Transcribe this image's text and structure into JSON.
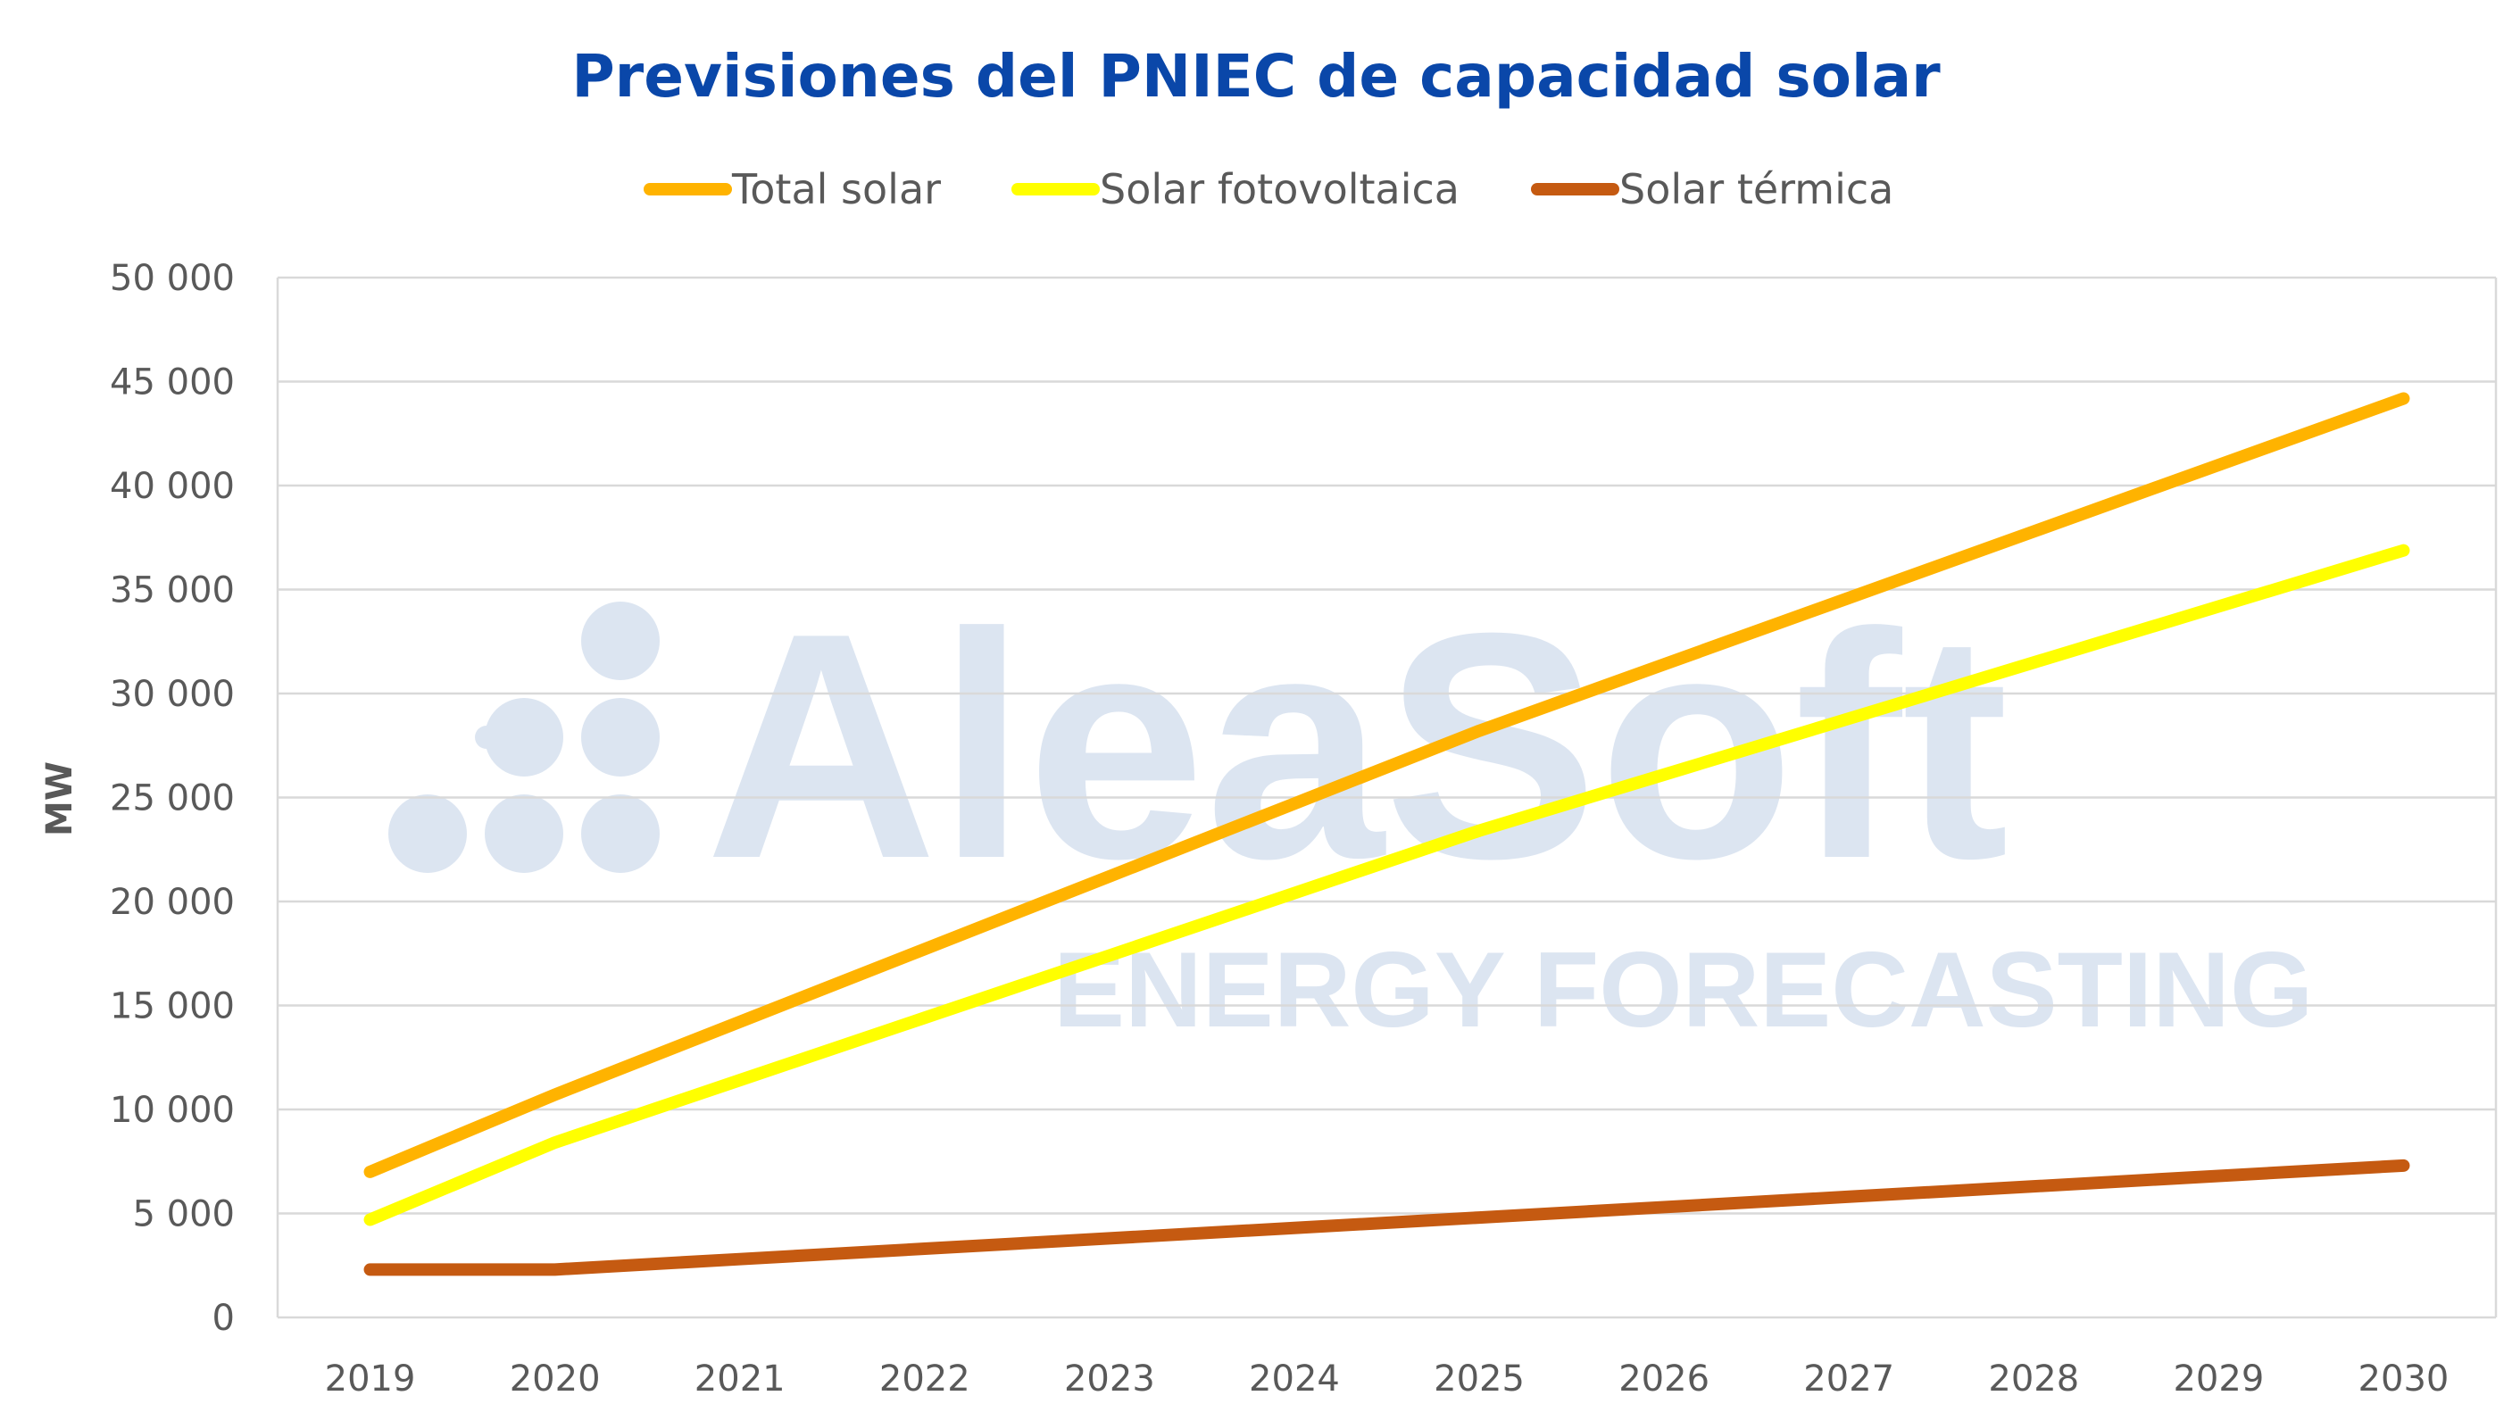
{
  "watermark": {
    "brand": "AleaSoft",
    "tagline": "ENERGY FORECASTING",
    "color": "#dce5f1"
  },
  "chart_data": {
    "type": "line",
    "title": "Previsiones del PNIEC de capacidad solar",
    "xlabel": "",
    "ylabel": "MW",
    "ylim": [
      0,
      50000
    ],
    "yticks": [
      0,
      5000,
      10000,
      15000,
      20000,
      25000,
      30000,
      35000,
      40000,
      45000,
      50000
    ],
    "ytick_labels": [
      "0",
      "5 000",
      "10 000",
      "15 000",
      "20 000",
      "25 000",
      "30 000",
      "35 000",
      "40 000",
      "45 000",
      "50 000"
    ],
    "grid": true,
    "legend_position": "top",
    "categories": [
      "2019",
      "2020",
      "2021",
      "2022",
      "2023",
      "2024",
      "2025",
      "2026",
      "2027",
      "2028",
      "2029",
      "2030"
    ],
    "series": [
      {
        "name": "Total solar",
        "color": "#ffb300",
        "values": [
          7000,
          10712,
          14211,
          17710,
          21208,
          24707,
          28207,
          31403,
          34598,
          37794,
          40989,
          44185
        ]
      },
      {
        "name": "Solar fotovoltaica",
        "color": "#ffff00",
        "values": [
          4700,
          8409,
          11408,
          14407,
          17405,
          20404,
          23404,
          26100,
          28795,
          31491,
          34186,
          36882
        ]
      },
      {
        "name": "Solar térmica",
        "color": "#c55a11",
        "values": [
          2300,
          2303,
          2803,
          3303,
          3803,
          4303,
          4803,
          5303,
          5803,
          6303,
          6803,
          7303
        ]
      }
    ]
  }
}
